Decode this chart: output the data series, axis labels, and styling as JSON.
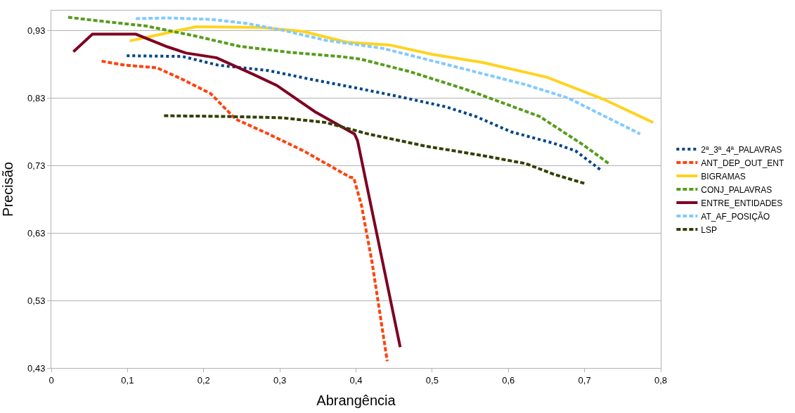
{
  "chart_data": {
    "type": "line",
    "xlabel": "Abrangência",
    "ylabel": "Precisão",
    "xlim": [
      0,
      0.8
    ],
    "xticks": [
      0,
      {
        "value": 0.1,
        "label": "0,1"
      },
      {
        "value": 0.2,
        "label": "0,2"
      },
      {
        "value": 0.3,
        "label": "0,3"
      },
      {
        "value": 0.4,
        "label": "0,4"
      },
      {
        "value": 0.5,
        "label": "0,5"
      },
      {
        "value": 0.6,
        "label": "0,6"
      },
      {
        "value": 0.7,
        "label": "0,7"
      },
      {
        "value": 0.8,
        "label": "0,8"
      }
    ],
    "ylim": [
      0.43,
      0.96
    ],
    "yticks": [
      {
        "value": 0.43,
        "label": "0,43"
      },
      {
        "value": 0.53,
        "label": "0,53"
      },
      {
        "value": 0.63,
        "label": "0,63"
      },
      {
        "value": 0.73,
        "label": "0,73"
      },
      {
        "value": 0.83,
        "label": "0,83"
      },
      {
        "value": 0.93,
        "label": "0,93"
      }
    ],
    "grid": "y",
    "legend": "right",
    "marker": "none",
    "series": [
      {
        "name": "2ª_3ª_4ª_PALAVRAS",
        "color": "#004586",
        "line_style": "dotted",
        "x": [
          0.099,
          0.172,
          0.219,
          0.285,
          0.341,
          0.397,
          0.454,
          0.519,
          0.557,
          0.604,
          0.66,
          0.688,
          0.722
        ],
        "values": [
          0.893,
          0.892,
          0.879,
          0.871,
          0.858,
          0.846,
          0.833,
          0.817,
          0.803,
          0.78,
          0.763,
          0.752,
          0.723
        ]
      },
      {
        "name": "ANT_DEP_OUT_ENT",
        "color": "#ff420e",
        "line_style": "dashed",
        "x": [
          0.066,
          0.097,
          0.139,
          0.172,
          0.209,
          0.242,
          0.285,
          0.331,
          0.392,
          0.397,
          0.407,
          0.421,
          0.441
        ],
        "values": [
          0.885,
          0.879,
          0.875,
          0.858,
          0.837,
          0.799,
          0.777,
          0.752,
          0.713,
          0.712,
          0.672,
          0.587,
          0.44
        ]
      },
      {
        "name": "BIGRAMAS",
        "color": "#ffd320",
        "line_style": "solid",
        "x": [
          0.103,
          0.19,
          0.275,
          0.331,
          0.388,
          0.444,
          0.5,
          0.566,
          0.651,
          0.726,
          0.79
        ],
        "values": [
          0.915,
          0.936,
          0.935,
          0.929,
          0.913,
          0.909,
          0.895,
          0.883,
          0.861,
          0.828,
          0.794
        ]
      },
      {
        "name": "CONJ_PALAVRAS",
        "color": "#579d1c",
        "line_style": "dashed",
        "x": [
          0.022,
          0.068,
          0.125,
          0.19,
          0.247,
          0.313,
          0.378,
          0.406,
          0.472,
          0.547,
          0.641,
          0.698,
          0.732
        ],
        "values": [
          0.95,
          0.944,
          0.937,
          0.922,
          0.907,
          0.898,
          0.892,
          0.888,
          0.869,
          0.842,
          0.803,
          0.761,
          0.733
        ]
      },
      {
        "name": "ENTRE_ENTIDADES",
        "color": "#7e0021",
        "line_style": "solid",
        "x": [
          0.029,
          0.054,
          0.111,
          0.153,
          0.177,
          0.217,
          0.266,
          0.296,
          0.346,
          0.398,
          0.402,
          0.458
        ],
        "values": [
          0.899,
          0.925,
          0.925,
          0.906,
          0.897,
          0.89,
          0.865,
          0.849,
          0.81,
          0.777,
          0.767,
          0.461
        ]
      },
      {
        "name": "AT_AF_POSIÇÃO",
        "color": "#83caff",
        "line_style": "dashed",
        "x": [
          0.111,
          0.153,
          0.209,
          0.256,
          0.303,
          0.36,
          0.435,
          0.519,
          0.623,
          0.679,
          0.773
        ],
        "values": [
          0.948,
          0.949,
          0.947,
          0.941,
          0.931,
          0.916,
          0.904,
          0.88,
          0.85,
          0.83,
          0.777
        ]
      },
      {
        "name": "LSP",
        "color": "#314004",
        "line_style": "dashed",
        "x": [
          0.148,
          0.228,
          0.303,
          0.36,
          0.416,
          0.491,
          0.566,
          0.623,
          0.66,
          0.702
        ],
        "values": [
          0.804,
          0.803,
          0.801,
          0.794,
          0.777,
          0.759,
          0.745,
          0.733,
          0.717,
          0.703
        ]
      }
    ]
  }
}
